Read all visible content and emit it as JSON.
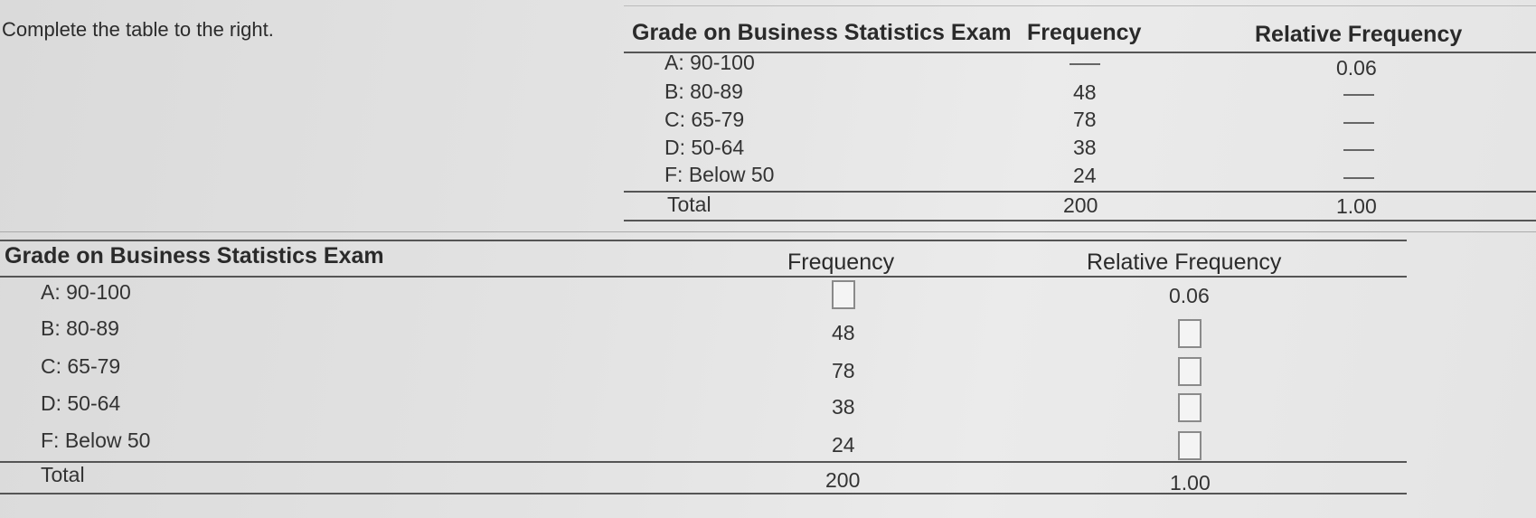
{
  "prompt": "Complete the table to the right.",
  "top_table": {
    "headers": [
      "Grade on Business Statistics Exam",
      "Frequency",
      "Relative Frequency"
    ],
    "rows": [
      {
        "grade": "A: 90-100",
        "frequency": "",
        "relative": "0.06"
      },
      {
        "grade": "B: 80-89",
        "frequency": "48",
        "relative": ""
      },
      {
        "grade": "C: 65-79",
        "frequency": "78",
        "relative": ""
      },
      {
        "grade": "D: 50-64",
        "frequency": "38",
        "relative": ""
      },
      {
        "grade": "F: Below 50",
        "frequency": "24",
        "relative": ""
      }
    ],
    "total": {
      "label": "Total",
      "frequency": "200",
      "relative": "1.00"
    }
  },
  "answer_table": {
    "headers": [
      "Grade on Business Statistics Exam",
      "Frequency",
      "Relative Frequency"
    ],
    "rows": [
      {
        "grade": "A: 90-100",
        "frequency": "",
        "relative": "0.06"
      },
      {
        "grade": "B: 80-89",
        "frequency": "48",
        "relative": ""
      },
      {
        "grade": "C: 65-79",
        "frequency": "78",
        "relative": ""
      },
      {
        "grade": "D: 50-64",
        "frequency": "38",
        "relative": ""
      },
      {
        "grade": "F: Below 50",
        "frequency": "24",
        "relative": ""
      }
    ],
    "total": {
      "label": "Total",
      "frequency": "200",
      "relative": "1.00"
    }
  }
}
